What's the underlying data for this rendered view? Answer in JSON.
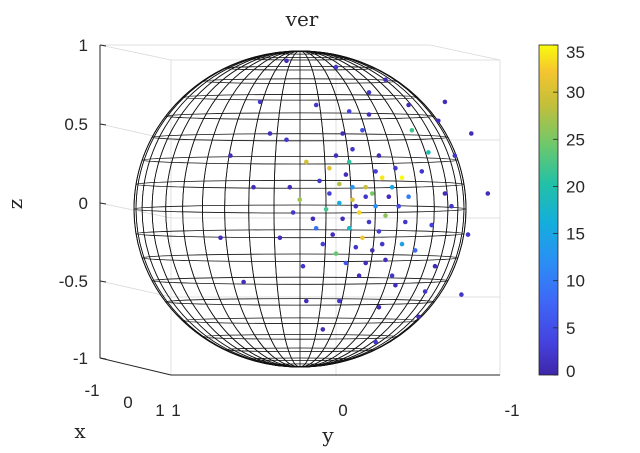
{
  "chart_data": {
    "type": "scatter",
    "title": "ver",
    "xlabel": "x",
    "ylabel": "y",
    "zlabel": "z",
    "view": "3D scatter on a wireframe unit sphere",
    "grid": true,
    "x_ticks": [
      "-1",
      "0",
      "1"
    ],
    "y_ticks": [
      "1",
      "0",
      "-1"
    ],
    "z_ticks": [
      "1",
      "0.5",
      "0",
      "-0.5",
      "-1"
    ],
    "zlim": [
      -1,
      1
    ],
    "colorbar": {
      "range": [
        0,
        35
      ],
      "ticks": [
        "35",
        "30",
        "25",
        "20",
        "15",
        "10",
        "5",
        "0"
      ],
      "colormap": "parula"
    },
    "points": [
      {
        "y": 0.06,
        "z": 0.18,
        "c": 1
      },
      {
        "y": 0.02,
        "z": 0.12,
        "c": 28
      },
      {
        "y": -0.04,
        "z": 0.06,
        "c": 3
      },
      {
        "y": 0.1,
        "z": 0.02,
        "c": 30
      },
      {
        "y": 0.18,
        "z": 0.04,
        "c": 2
      },
      {
        "y": 0.24,
        "z": -0.02,
        "c": 12
      },
      {
        "y": 0.14,
        "z": -0.06,
        "c": 33
      },
      {
        "y": 0.04,
        "z": -0.1,
        "c": 1
      },
      {
        "y": -0.06,
        "z": -0.04,
        "c": 22
      },
      {
        "y": 0.2,
        "z": -0.12,
        "c": 2
      },
      {
        "y": 0.3,
        "z": -0.08,
        "c": 26
      },
      {
        "y": 0.08,
        "z": -0.16,
        "c": 18
      },
      {
        "y": -0.02,
        "z": -0.2,
        "c": 1
      },
      {
        "y": 0.16,
        "z": -0.22,
        "c": 32
      },
      {
        "y": 0.26,
        "z": -0.18,
        "c": 3
      },
      {
        "y": 0.12,
        "z": -0.28,
        "c": 2
      },
      {
        "y": 0.0,
        "z": -0.32,
        "c": 24
      },
      {
        "y": 0.22,
        "z": -0.3,
        "c": 1
      },
      {
        "y": 0.34,
        "z": 0.1,
        "c": 15
      },
      {
        "y": -0.1,
        "z": 0.14,
        "c": 2
      },
      {
        "y": 0.28,
        "z": 0.16,
        "c": 34
      },
      {
        "y": 0.08,
        "z": 0.26,
        "c": 21
      },
      {
        "y": -0.14,
        "z": -0.1,
        "c": 1
      },
      {
        "y": 0.38,
        "z": -0.02,
        "c": 4
      },
      {
        "y": 0.18,
        "z": 0.1,
        "c": 29
      },
      {
        "y": 0.02,
        "z": 0.0,
        "c": 16
      },
      {
        "y": 0.12,
        "z": -0.02,
        "c": 1
      },
      {
        "y": 0.22,
        "z": 0.06,
        "c": 25
      },
      {
        "y": -0.08,
        "z": -0.26,
        "c": 3
      },
      {
        "y": 0.3,
        "z": -0.36,
        "c": 1
      },
      {
        "y": 0.44,
        "z": 0.04,
        "c": 10
      },
      {
        "y": 0.1,
        "z": 0.34,
        "c": 2
      },
      {
        "y": -0.18,
        "z": 0.26,
        "c": 30
      },
      {
        "y": 0.26,
        "z": 0.3,
        "c": 1
      },
      {
        "y": 0.36,
        "z": 0.22,
        "c": 2
      },
      {
        "y": 0.04,
        "z": 0.44,
        "c": 1
      },
      {
        "y": -0.2,
        "z": -0.4,
        "c": 2
      },
      {
        "y": 0.14,
        "z": -0.46,
        "c": 1
      },
      {
        "y": 0.4,
        "z": -0.26,
        "c": 14
      },
      {
        "y": 0.52,
        "z": 0.2,
        "c": 2
      },
      {
        "y": -0.28,
        "z": 0.1,
        "c": 1
      },
      {
        "y": 0.58,
        "z": -0.14,
        "c": 3
      },
      {
        "y": 0.2,
        "z": 0.56,
        "c": 1
      },
      {
        "y": -0.3,
        "z": 0.4,
        "c": 2
      },
      {
        "y": 0.46,
        "z": 0.46,
        "c": 22
      },
      {
        "y": 0.36,
        "z": -0.52,
        "c": 1
      },
      {
        "y": 0.02,
        "z": -0.62,
        "c": 2
      },
      {
        "y": 0.66,
        "z": 0.06,
        "c": 1
      },
      {
        "y": -0.12,
        "z": 0.62,
        "c": 2
      },
      {
        "y": 0.6,
        "z": -0.4,
        "c": 1
      },
      {
        "y": -0.34,
        "z": -0.22,
        "c": 1
      },
      {
        "y": 0.72,
        "z": 0.3,
        "c": 2
      },
      {
        "y": 0.3,
        "z": 0.78,
        "c": 1
      },
      {
        "y": -0.46,
        "z": 0.64,
        "c": 2
      },
      {
        "y": 0.5,
        "z": -0.72,
        "c": 1
      },
      {
        "y": -0.08,
        "z": -0.8,
        "c": 1
      },
      {
        "y": 0.8,
        "z": -0.2,
        "c": 2
      },
      {
        "y": 0.82,
        "z": 0.44,
        "c": 1
      },
      {
        "y": 0.0,
        "z": 0.86,
        "c": 2
      },
      {
        "y": -0.56,
        "z": -0.5,
        "c": 1
      },
      {
        "y": 0.66,
        "z": 0.64,
        "c": 1
      },
      {
        "y": 0.24,
        "z": -0.88,
        "c": 2
      },
      {
        "y": -0.64,
        "z": 0.3,
        "c": 1
      },
      {
        "y": 0.92,
        "z": 0.06,
        "c": 1
      },
      {
        "y": -0.3,
        "z": 0.9,
        "c": 1
      },
      {
        "y": 0.76,
        "z": -0.58,
        "c": 2
      },
      {
        "y": -0.7,
        "z": -0.22,
        "c": 1
      },
      {
        "y": 0.4,
        "z": 0.16,
        "c": 35
      },
      {
        "y": 0.34,
        "z": -0.46,
        "c": 2
      },
      {
        "y": 0.48,
        "z": -0.3,
        "c": 8
      },
      {
        "y": -0.22,
        "z": 0.02,
        "c": 27
      },
      {
        "y": 0.16,
        "z": 0.46,
        "c": 5
      },
      {
        "y": 0.56,
        "z": 0.32,
        "c": 19
      },
      {
        "y": -0.04,
        "z": 0.22,
        "c": 31
      },
      {
        "y": 0.06,
        "z": -0.38,
        "c": 6
      },
      {
        "y": 0.28,
        "z": -0.26,
        "c": 2
      },
      {
        "y": 0.1,
        "z": 0.1,
        "c": 13
      },
      {
        "y": 0.24,
        "z": 0.2,
        "c": 3
      },
      {
        "y": 0.32,
        "z": 0.04,
        "c": 1
      },
      {
        "y": -0.12,
        "z": -0.16,
        "c": 9
      },
      {
        "y": 0.18,
        "z": -0.38,
        "c": 1
      },
      {
        "y": 0.42,
        "z": -0.12,
        "c": 2
      },
      {
        "y": 0.0,
        "z": 0.3,
        "c": 1
      },
      {
        "y": -0.26,
        "z": -0.06,
        "c": 2
      },
      {
        "y": 0.62,
        "z": 0.52,
        "c": 1
      },
      {
        "y": 0.54,
        "z": -0.56,
        "c": 2
      },
      {
        "y": -0.4,
        "z": 0.44,
        "c": 1
      },
      {
        "y": 0.2,
        "z": 0.7,
        "c": 2
      },
      {
        "y": -0.18,
        "z": -0.62,
        "c": 1
      },
      {
        "y": 0.44,
        "z": 0.62,
        "c": 1
      },
      {
        "y": 0.7,
        "z": -0.02,
        "c": 2
      },
      {
        "y": -0.5,
        "z": 0.1,
        "c": 1
      },
      {
        "y": 0.08,
        "z": 0.58,
        "c": 3
      },
      {
        "y": 0.26,
        "z": -0.66,
        "c": 1
      }
    ]
  }
}
